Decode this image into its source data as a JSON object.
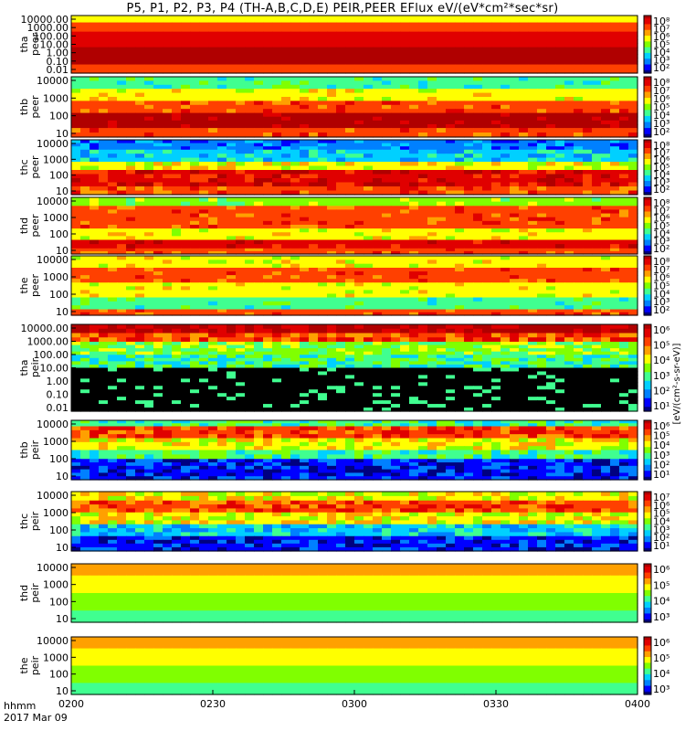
{
  "title": "P5, P1, P2, P3, P4 (TH-A,B,C,D,E) PEIR,PEER EFlux eV/(eV*cm²*sec*sr)",
  "footer": {
    "line1": "hhmm",
    "line2": "2017 Mar 09"
  },
  "colorbar_unit": "[eV/(cm²-s-sr-eV)]",
  "colors": {
    "background": "#ffffff",
    "frame": "#000000",
    "colormap": [
      "#000080",
      "#0000ff",
      "#0080ff",
      "#00d0ff",
      "#40ff90",
      "#80ff00",
      "#ffff00",
      "#ffa000",
      "#ff4000",
      "#e00000",
      "#b00000"
    ]
  },
  "chart_data": [
    {
      "type": "heatmap",
      "probe": "tha",
      "species": "peer",
      "ylabel": [
        "tha",
        "peer"
      ],
      "yticks": [
        "10000.00",
        "1000.00",
        "100.00",
        "10.00",
        "1.00",
        "0.10",
        "0.01"
      ],
      "cbar_ticks": [
        "10²",
        "10³",
        "10⁴",
        "10⁵",
        "10⁶",
        "10⁷",
        "10⁸"
      ]
    },
    {
      "type": "heatmap",
      "probe": "thb",
      "species": "peer",
      "ylabel": [
        "thb",
        "peer"
      ],
      "yticks": [
        "10000",
        "1000",
        "100",
        "10"
      ],
      "cbar_ticks": [
        "10²",
        "10³",
        "10⁴",
        "10⁵",
        "10⁶",
        "10⁷",
        "10⁸"
      ]
    },
    {
      "type": "heatmap",
      "probe": "thc",
      "species": "peer",
      "ylabel": [
        "thc",
        "peer"
      ],
      "yticks": [
        "10000",
        "1000",
        "100",
        "10"
      ],
      "cbar_ticks": [
        "10²",
        "10³",
        "10⁴",
        "10⁵",
        "10⁶",
        "10⁷",
        "10⁸"
      ]
    },
    {
      "type": "heatmap",
      "probe": "thd",
      "species": "peer",
      "ylabel": [
        "thd",
        "peer"
      ],
      "yticks": [
        "10000",
        "1000",
        "100",
        "10"
      ],
      "cbar_ticks": [
        "10²",
        "10³",
        "10⁴",
        "10⁵",
        "10⁶",
        "10⁷",
        "10⁸"
      ]
    },
    {
      "type": "heatmap",
      "probe": "the",
      "species": "peer",
      "ylabel": [
        "the",
        "peer"
      ],
      "yticks": [
        "10000",
        "1000",
        "100",
        "10"
      ],
      "cbar_ticks": [
        "10²",
        "10³",
        "10⁴",
        "10⁵",
        "10⁶",
        "10⁷",
        "10⁸"
      ]
    },
    {
      "type": "heatmap",
      "probe": "tha",
      "species": "peir",
      "ylabel": [
        "tha",
        "peir"
      ],
      "yticks": [
        "10000.00",
        "1000.00",
        "100.00",
        "10.00",
        "1.00",
        "0.10",
        "0.01"
      ],
      "cbar_ticks": [
        "10¹",
        "10²",
        "10³",
        "10⁴",
        "10⁵",
        "10⁶"
      ]
    },
    {
      "type": "heatmap",
      "probe": "thb",
      "species": "peir",
      "ylabel": [
        "thb",
        "peir"
      ],
      "yticks": [
        "10000",
        "1000",
        "100",
        "10"
      ],
      "cbar_ticks": [
        "10¹",
        "10²",
        "10³",
        "10⁴",
        "10⁵",
        "10⁶"
      ]
    },
    {
      "type": "heatmap",
      "probe": "thc",
      "species": "peir",
      "ylabel": [
        "thc",
        "peir"
      ],
      "yticks": [
        "10000",
        "1000",
        "100",
        "10"
      ],
      "cbar_ticks": [
        "10¹",
        "10²",
        "10³",
        "10⁴",
        "10⁵",
        "10⁶",
        "10⁷"
      ]
    },
    {
      "type": "heatmap",
      "probe": "thd",
      "species": "peir",
      "ylabel": [
        "thd",
        "peir"
      ],
      "yticks": [
        "10000",
        "1000",
        "100",
        "10"
      ],
      "cbar_ticks": [
        "10³",
        "10⁴",
        "10⁵",
        "10⁶"
      ]
    },
    {
      "type": "heatmap",
      "probe": "the",
      "species": "peir",
      "ylabel": [
        "the",
        "peir"
      ],
      "yticks": [
        "10000",
        "1000",
        "100",
        "10"
      ],
      "cbar_ticks": [
        "10³",
        "10⁴",
        "10⁵",
        "10⁶"
      ]
    }
  ],
  "xaxis": {
    "ticks": [
      "0200",
      "0230",
      "0300",
      "0330",
      "0400"
    ]
  }
}
